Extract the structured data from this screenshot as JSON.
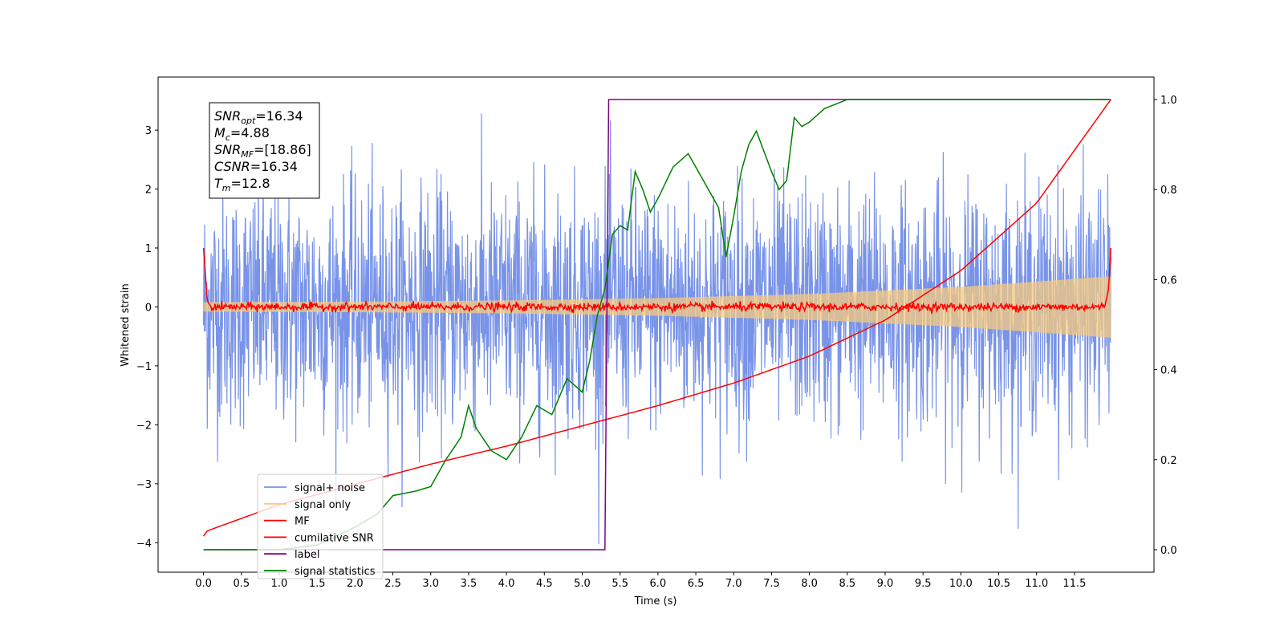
{
  "chart_data": {
    "type": "line",
    "xlabel": "Time (s)",
    "ylabel": "Whitened strain",
    "xlim": [
      -0.6,
      12.55
    ],
    "ylim_left": [
      -4.5,
      3.9
    ],
    "ylim_right": [
      -0.05,
      1.05
    ],
    "x_ticks": [
      "0.0",
      "0.5",
      "1.0",
      "1.5",
      "2.0",
      "2.5",
      "3.0",
      "3.5",
      "4.0",
      "4.5",
      "5.0",
      "5.5",
      "6.0",
      "6.5",
      "7.0",
      "7.5",
      "8.0",
      "8.5",
      "9.0",
      "9.5",
      "10.0",
      "10.5",
      "11.0",
      "11.5"
    ],
    "y_left_ticks": [
      "3",
      "2",
      "1",
      "0",
      "−1",
      "−2",
      "−3",
      "−4"
    ],
    "y_right_ticks": [
      "1.0",
      "0.8",
      "0.6",
      "0.4",
      "0.2",
      "0.0"
    ],
    "legend_placement": "lower-left",
    "info_box": [
      {
        "base": "SNR",
        "sub": "opt",
        "value": "=16.34"
      },
      {
        "base": "M",
        "sub": "c",
        "value": "=4.88"
      },
      {
        "base": "SNR",
        "sub": "MF",
        "value": "=[18.86]"
      },
      {
        "base": "CSNR",
        "sub": "",
        "value": "=16.34"
      },
      {
        "base": "T",
        "sub": "m",
        "value": "=12.8"
      }
    ],
    "series": [
      {
        "name": "signal+ noise",
        "color": "#7893e8",
        "axis": "left",
        "noise_amplitude": 1.0,
        "x_range": [
          0.0,
          11.98
        ]
      },
      {
        "name": "signal only",
        "color": "#f5c97f",
        "axis": "left",
        "envelope": {
          "x": [
            0.0,
            2.0,
            4.0,
            6.0,
            8.0,
            10.0,
            11.98
          ],
          "amplitude": [
            0.08,
            0.09,
            0.11,
            0.15,
            0.22,
            0.34,
            0.52
          ]
        }
      },
      {
        "name": "MF",
        "color": "#ff0000",
        "axis": "left",
        "x": [
          0.0,
          0.05,
          0.1,
          0.5,
          11.9,
          11.95,
          11.98
        ],
        "y": [
          1.0,
          0.1,
          0.0,
          0.0,
          0.0,
          0.3,
          1.0
        ]
      },
      {
        "name": "cumilative SNR",
        "color": "#ff0000",
        "axis": "right",
        "x": [
          0.0,
          0.02,
          1.0,
          2.0,
          3.0,
          4.0,
          5.0,
          6.0,
          7.0,
          8.0,
          9.0,
          10.0,
          11.0,
          11.98
        ],
        "y": [
          0.03,
          0.04,
          0.1,
          0.145,
          0.19,
          0.23,
          0.275,
          0.32,
          0.37,
          0.43,
          0.51,
          0.62,
          0.77,
          1.0
        ]
      },
      {
        "name": "label",
        "color": "#800080",
        "axis": "right",
        "x": [
          0.0,
          5.3,
          5.35,
          11.98
        ],
        "y": [
          0.0,
          0.0,
          1.0,
          1.0
        ]
      },
      {
        "name": "signal statistics",
        "color": "#008000",
        "axis": "right",
        "x": [
          0.0,
          0.5,
          1.0,
          1.5,
          2.0,
          2.3,
          2.5,
          2.8,
          3.0,
          3.2,
          3.4,
          3.5,
          3.6,
          3.8,
          4.0,
          4.2,
          4.4,
          4.6,
          4.8,
          5.0,
          5.1,
          5.2,
          5.3,
          5.4,
          5.5,
          5.6,
          5.7,
          5.8,
          5.9,
          6.0,
          6.2,
          6.4,
          6.6,
          6.8,
          6.9,
          7.0,
          7.1,
          7.2,
          7.3,
          7.5,
          7.6,
          7.7,
          7.8,
          7.9,
          8.0,
          8.2,
          8.5,
          9.0,
          9.5,
          10.0,
          11.0,
          11.95
        ],
        "y": [
          0.0,
          0.0,
          0.0,
          0.01,
          0.05,
          0.08,
          0.12,
          0.13,
          0.14,
          0.2,
          0.25,
          0.32,
          0.27,
          0.22,
          0.2,
          0.25,
          0.32,
          0.3,
          0.38,
          0.35,
          0.42,
          0.52,
          0.58,
          0.7,
          0.72,
          0.71,
          0.84,
          0.8,
          0.75,
          0.78,
          0.85,
          0.88,
          0.82,
          0.76,
          0.65,
          0.74,
          0.84,
          0.9,
          0.93,
          0.84,
          0.8,
          0.82,
          0.96,
          0.94,
          0.95,
          0.98,
          1.0,
          1.0,
          1.0,
          1.0,
          1.0,
          1.0
        ]
      }
    ]
  }
}
